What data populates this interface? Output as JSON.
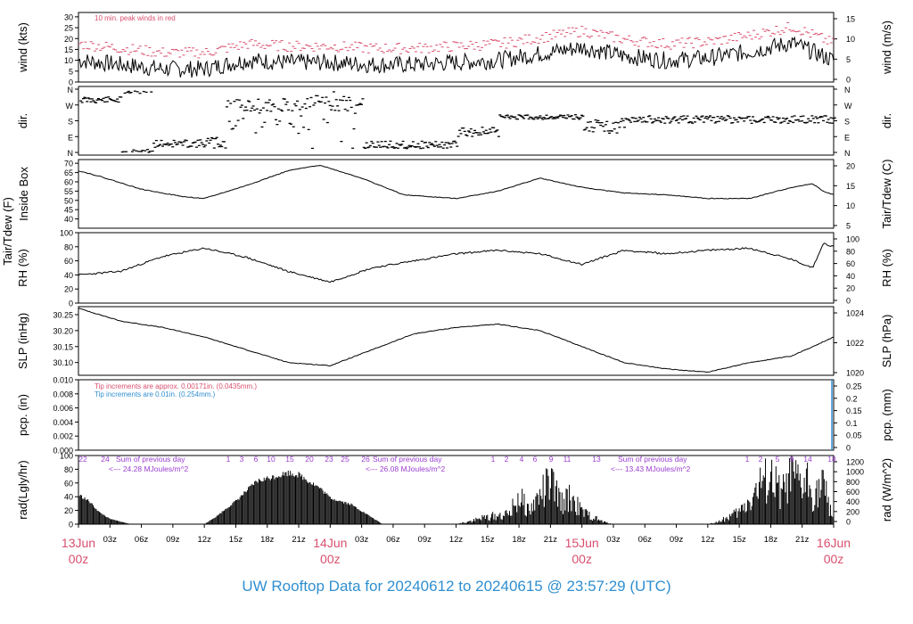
{
  "colors": {
    "date_label": "#d8506e",
    "title": "#2f8fd0",
    "red_note": "#d8506e",
    "blue_note": "#2f8fd0",
    "purple_note": "#9b3fd0",
    "trace": "#000000",
    "peak": "#d8506e"
  },
  "title": "UW Rooftop Data for 20240612  to  20240615 @ 23:57:29  (UTC)",
  "chart_data": [
    {
      "type": "line",
      "name_left": "wind (kts)",
      "name_right": "wind (m/s)",
      "ylim": [
        0,
        32
      ],
      "ticks_left": [
        0,
        5,
        10,
        15,
        20,
        25,
        30
      ],
      "ticks_right_labels": [
        "0",
        "5",
        "10",
        "15"
      ],
      "annotation": "10 min. peak winds in red",
      "series": [
        {
          "values_hours": [
            0,
            4,
            8,
            12,
            16,
            20,
            24,
            28,
            32,
            36,
            40,
            44,
            48,
            52,
            56,
            60,
            64,
            68,
            72
          ],
          "values": [
            10,
            8,
            6,
            6,
            10,
            9,
            9,
            8,
            8,
            9,
            10,
            13,
            16,
            12,
            10,
            11,
            14,
            18,
            10
          ]
        }
      ]
    },
    {
      "type": "scatter",
      "name_left": "dir.",
      "name_right": "dir.",
      "tick_labels": [
        "N",
        "W",
        "S",
        "E",
        "N"
      ]
    },
    {
      "type": "line",
      "name_left": "Tair/Tdew (F)",
      "name_left2": "Inside Box",
      "name_right": "Tair/Tdew (C)",
      "ylim": [
        35,
        72
      ],
      "ticks_left": [
        40,
        45,
        50,
        55,
        60,
        65,
        70
      ],
      "ticks_right_labels": [
        "5",
        "10",
        "15",
        "20"
      ],
      "x_hours": [
        0,
        2,
        6,
        10,
        12,
        16,
        20,
        23,
        27,
        31,
        36,
        40,
        44,
        48,
        52,
        56,
        60,
        64,
        68,
        70,
        71,
        72
      ],
      "values": [
        66,
        63,
        56,
        52,
        51,
        58,
        66,
        69,
        62,
        53,
        51,
        55,
        62,
        57,
        54,
        53,
        51,
        51,
        57,
        59,
        55,
        53
      ]
    },
    {
      "type": "line",
      "name_left": "RH (%)",
      "name_right": "RH (%)",
      "ylim": [
        0,
        100
      ],
      "ticks_left": [
        0,
        20,
        40,
        60,
        80,
        100
      ],
      "ticks_right_labels": [
        "0",
        "20",
        "40",
        "60",
        "80",
        "100"
      ],
      "x_hours": [
        0,
        4,
        8,
        12,
        16,
        20,
        24,
        28,
        32,
        36,
        40,
        44,
        48,
        52,
        56,
        60,
        64,
        68,
        70,
        71,
        72
      ],
      "values": [
        40,
        45,
        66,
        78,
        65,
        45,
        30,
        50,
        60,
        70,
        75,
        70,
        55,
        75,
        70,
        75,
        78,
        62,
        50,
        85,
        80
      ]
    },
    {
      "type": "line",
      "name_left": "SLP (inHg)",
      "name_right": "SLP (hPa)",
      "ylim": [
        30.06,
        30.275
      ],
      "ticks_left": [
        30.1,
        30.15,
        30.2,
        30.25
      ],
      "tick_labels_left": [
        "30.10",
        "30.15",
        "30.20",
        "30.25"
      ],
      "ticks_right_labels": [
        "1020",
        "1022",
        "1024"
      ],
      "x_hours": [
        0,
        4,
        8,
        12,
        16,
        20,
        24,
        28,
        32,
        36,
        40,
        44,
        48,
        52,
        56,
        60,
        64,
        68,
        72
      ],
      "values": [
        30.27,
        30.23,
        30.21,
        30.18,
        30.14,
        30.1,
        30.09,
        30.14,
        30.19,
        30.21,
        30.22,
        30.2,
        30.15,
        30.1,
        30.08,
        30.07,
        30.1,
        30.12,
        30.18
      ]
    },
    {
      "type": "line",
      "name_left": "pcp. (in)",
      "name_right": "pcp. (mm)",
      "ylim": [
        0,
        0.01
      ],
      "ticks_left": [
        0,
        0.002,
        0.004,
        0.006,
        0.008,
        0.01
      ],
      "tick_labels_left": [
        "0.000",
        "0.002",
        "0.004",
        "0.006",
        "0.008",
        "0.010"
      ],
      "ticks_right_labels": [
        "0",
        "0.05",
        "0.1",
        "0.15",
        "0.2",
        "0.25"
      ],
      "note_red": "Tip increments are approx. 0.00171in. (0.0435mm.)",
      "note_blue": "Tip increments are 0.01in. (0.254mm.)"
    },
    {
      "type": "area",
      "name_left": "rad(Lgly/hr)",
      "name_right": "rad (W/m^2)",
      "ylim": [
        0,
        100
      ],
      "ticks_left": [
        0,
        20,
        40,
        60,
        80,
        100
      ],
      "ticks_right_labels": [
        "0",
        "200",
        "400",
        "600",
        "800",
        "1000",
        "1200"
      ],
      "x_hours": [
        0,
        1,
        2,
        3,
        4.5,
        5,
        12,
        13,
        15,
        17,
        20,
        21,
        23,
        24,
        26,
        28,
        29,
        36,
        37,
        39,
        41,
        42,
        43,
        44,
        45,
        46,
        47,
        48,
        49,
        50,
        51,
        53,
        60,
        61,
        63,
        64,
        65,
        66,
        67,
        68,
        69,
        69.5,
        70,
        71,
        72
      ],
      "values": [
        45,
        35,
        18,
        8,
        2,
        0,
        0,
        10,
        35,
        65,
        78,
        75,
        55,
        40,
        30,
        10,
        0,
        0,
        5,
        15,
        20,
        55,
        28,
        60,
        85,
        45,
        55,
        25,
        15,
        5,
        0,
        0,
        0,
        5,
        25,
        50,
        80,
        95,
        60,
        97,
        75,
        90,
        60,
        80,
        10
      ],
      "day_notes": [
        {
          "label": "Sum of previous day",
          "value": "<--- 24.28 MJoules/m^2"
        },
        {
          "label": "Sum of previous day",
          "value": "<--- 26.08 MJoules/m^2"
        },
        {
          "label": "Sum of previous day",
          "value": "<--- 13.43 MJoules/m^2"
        }
      ],
      "top_tick_labels": [
        "22",
        "24",
        "1",
        "3",
        "6",
        "10",
        "15",
        "20",
        "23",
        "25",
        "26",
        "1",
        "2",
        "4",
        "6",
        "9",
        "11",
        "13",
        "1",
        "2",
        "5",
        "9",
        "14",
        "18"
      ]
    }
  ],
  "x_axis": {
    "hour_labels": [
      "03z",
      "06z",
      "09z",
      "12z",
      "15z",
      "18z",
      "21z",
      "03z",
      "06z",
      "09z",
      "12z",
      "15z",
      "18z",
      "21z",
      "03z",
      "06z",
      "09z",
      "12z",
      "15z",
      "18z",
      "21z"
    ],
    "day_labels": [
      {
        "date": "13Jun",
        "time": "00z"
      },
      {
        "date": "14Jun",
        "time": "00z"
      },
      {
        "date": "15Jun",
        "time": "00z"
      },
      {
        "date": "16Jun",
        "time": "00z"
      }
    ]
  }
}
